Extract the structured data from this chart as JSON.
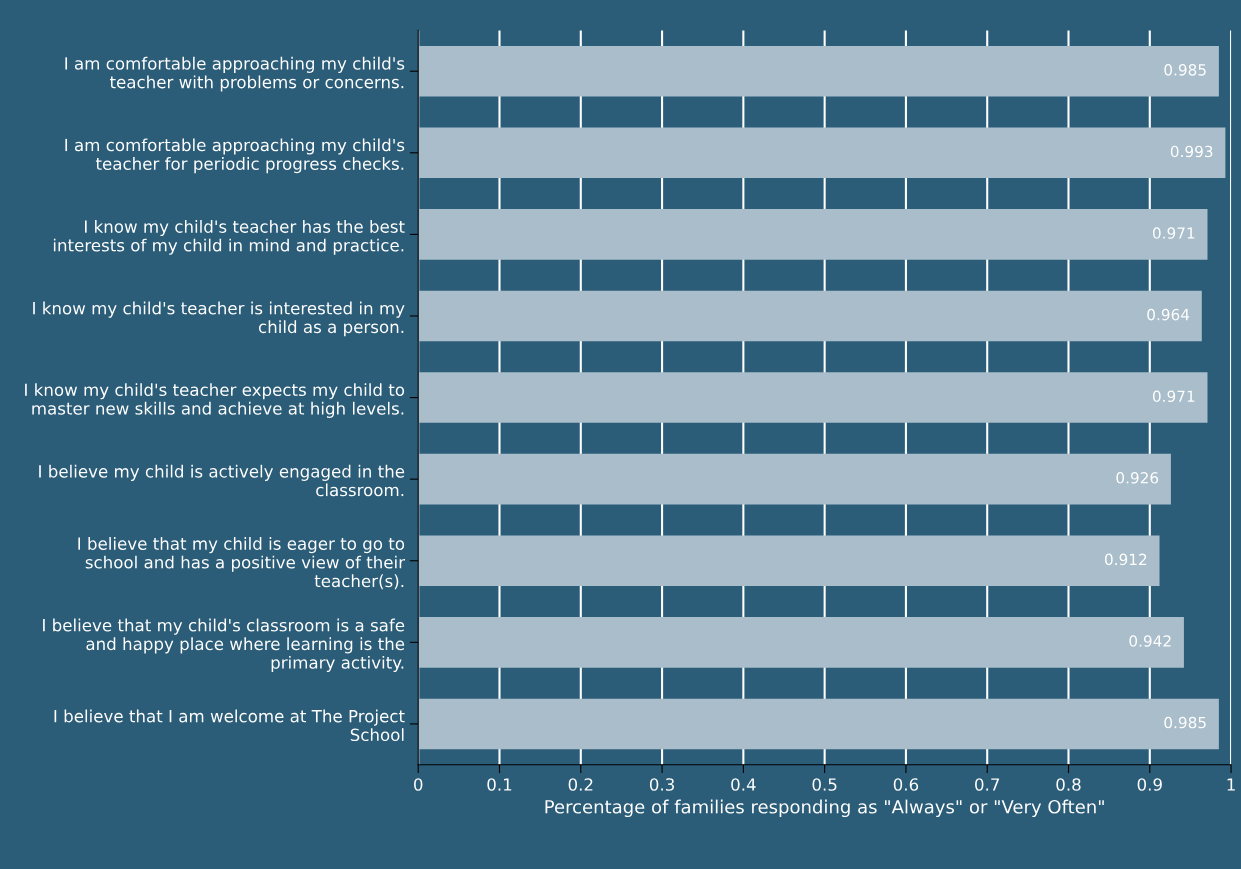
{
  "chart_data": {
    "type": "bar",
    "orientation": "horizontal",
    "categories": [
      "I am comfortable approaching my child's teacher with problems or concerns.",
      "I am comfortable approaching my child's teacher for periodic progress checks.",
      "I know my child's teacher has the best interests of my child in mind and practice.",
      "I know my child's teacher is interested in my child as a person.",
      "I know my child's teacher expects my child to master new skills and achieve at high levels.",
      "I believe my child is actively engaged in the classroom.",
      "I believe that my child is eager to go to school and has a positive view of their teacher(s).",
      "I believe that my child's classroom is a safe and happy place where learning is the primary activity.",
      "I believe that I am welcome at The Project School"
    ],
    "values": [
      0.985,
      0.993,
      0.971,
      0.964,
      0.971,
      0.926,
      0.912,
      0.942,
      0.985
    ],
    "color": "#a9bdca",
    "xlabel": "Percentage of families responding as \"Always\" or \"Very Often\"",
    "xlim": [
      0,
      1
    ],
    "xticks": [
      0,
      0.1,
      0.2,
      0.3,
      0.4,
      0.5,
      0.6,
      0.7,
      0.8,
      0.9,
      1
    ],
    "grid": "x",
    "data_labels": true
  }
}
